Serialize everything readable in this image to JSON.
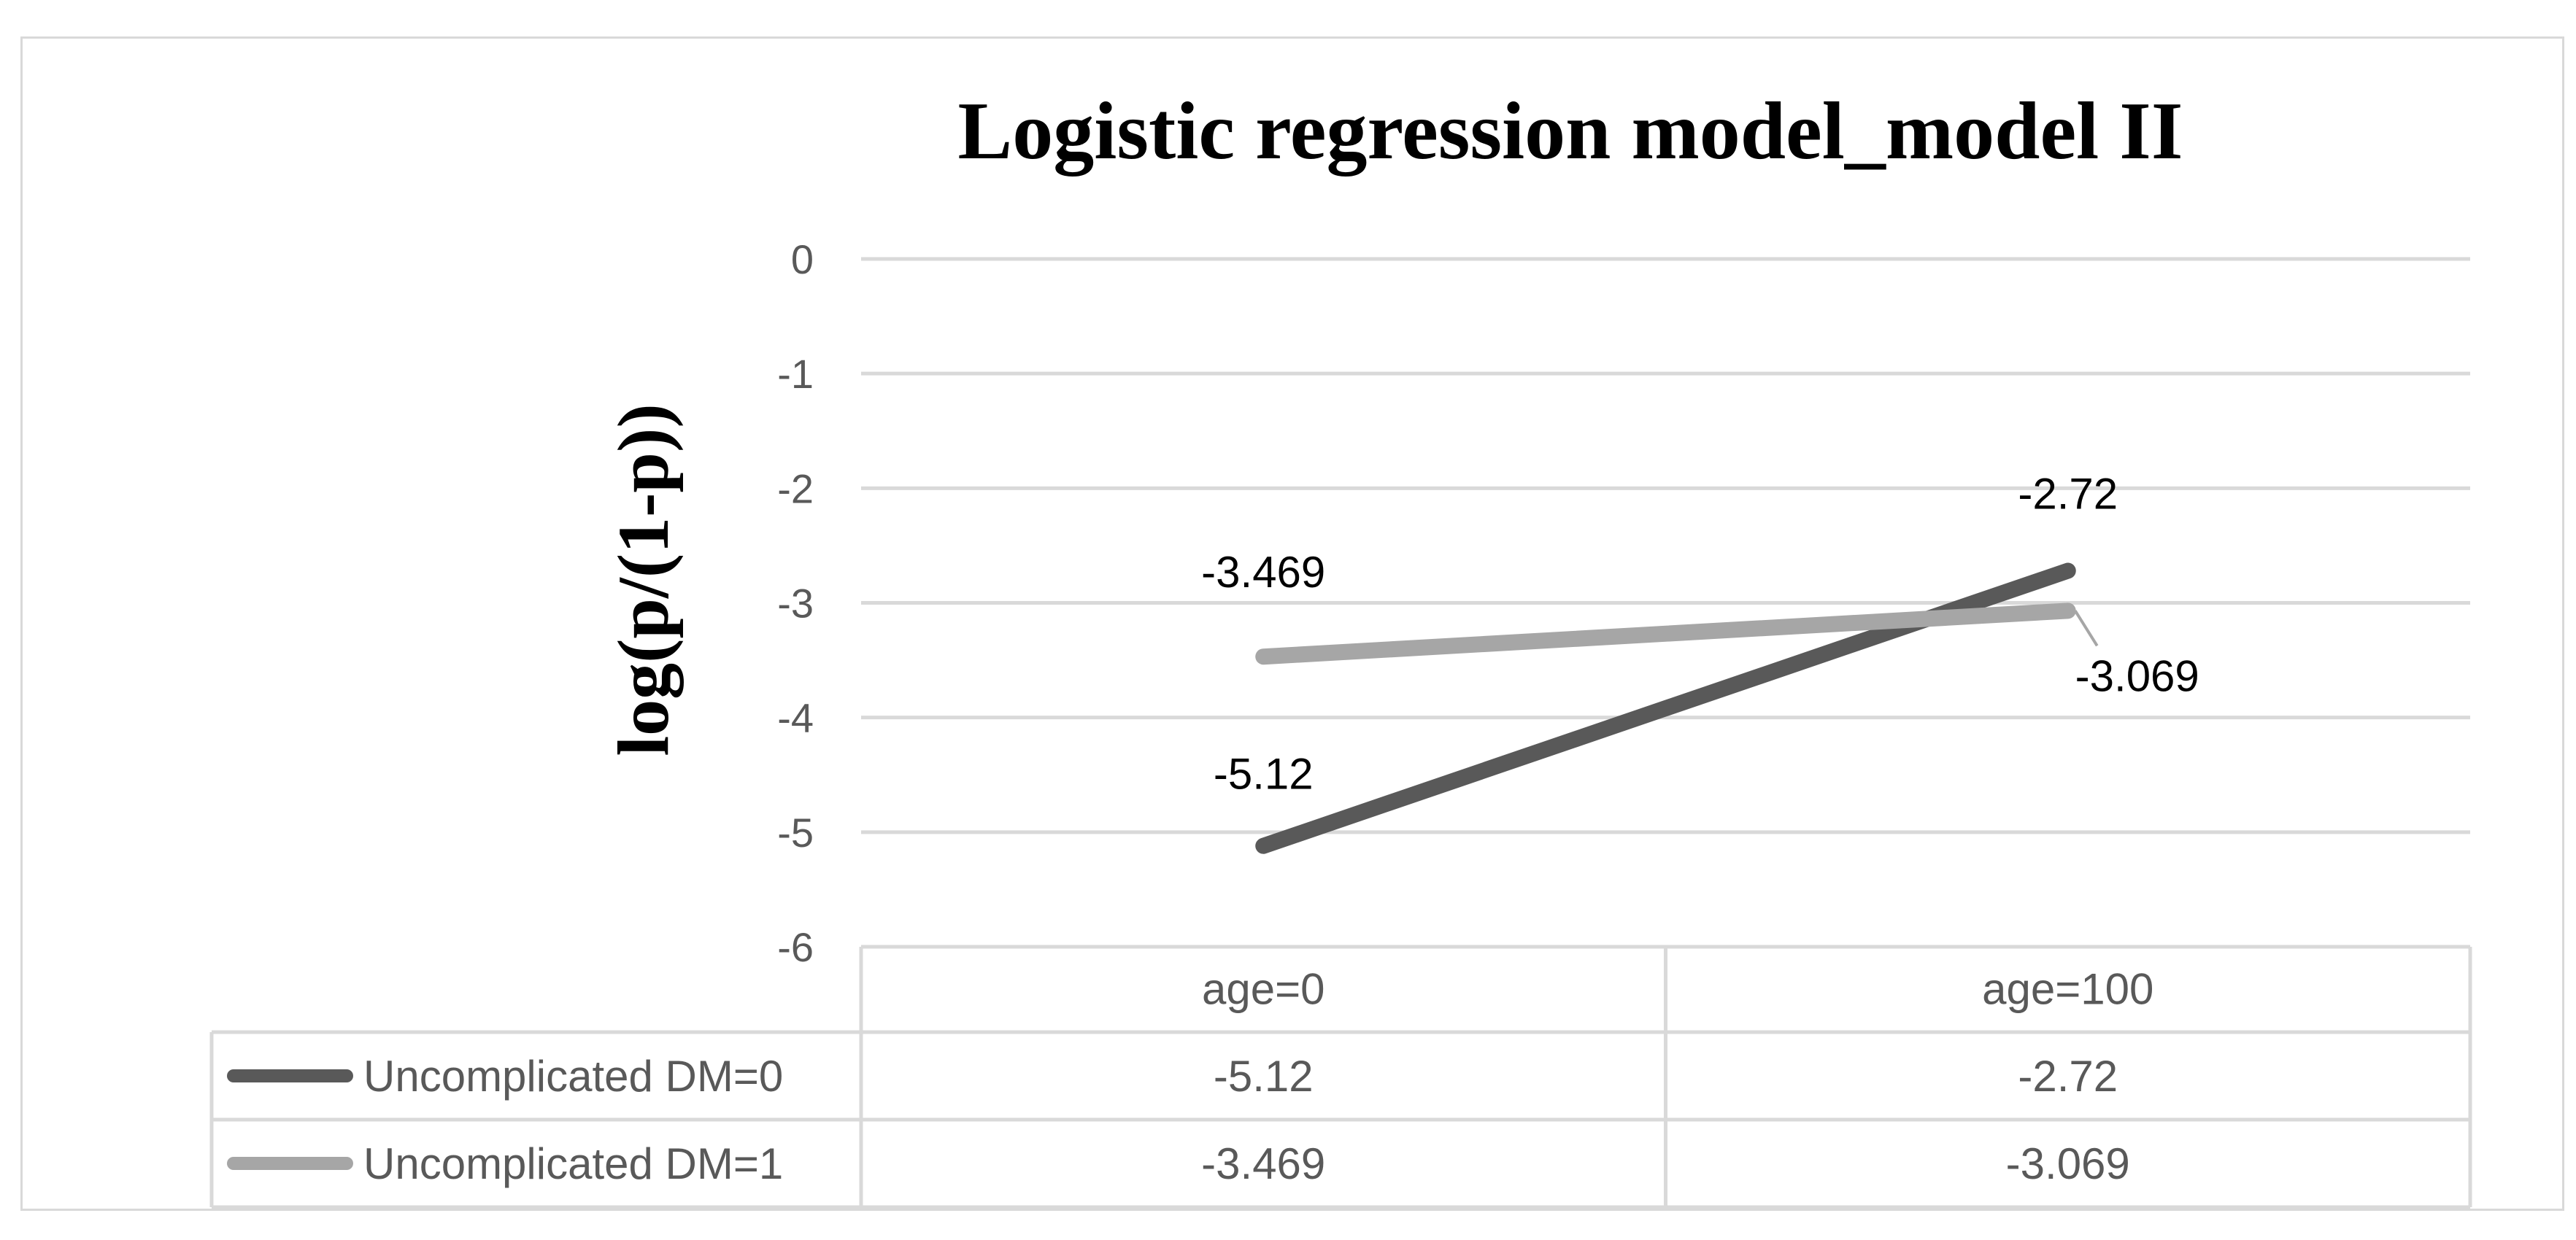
{
  "chart_data": {
    "type": "line",
    "title": "Logistic regression model_model II",
    "ylabel": "log(p/(1-p))",
    "xlabel": "",
    "categories": [
      "age=0",
      "age=100"
    ],
    "yticks": [
      0,
      -1,
      -2,
      -3,
      -4,
      -5,
      -6
    ],
    "ylim": [
      -6,
      0
    ],
    "grid": true,
    "legend": "data table below chart",
    "series": [
      {
        "name": "Uncomplicated DM=0",
        "values": [
          -5.12,
          -2.72
        ],
        "labels": [
          "-5.12",
          "-2.72"
        ],
        "color": "#595959"
      },
      {
        "name": "Uncomplicated DM=1",
        "values": [
          -3.469,
          -3.069
        ],
        "labels": [
          "-3.469",
          "-3.069"
        ],
        "color": "#a6a6a6"
      }
    ]
  }
}
